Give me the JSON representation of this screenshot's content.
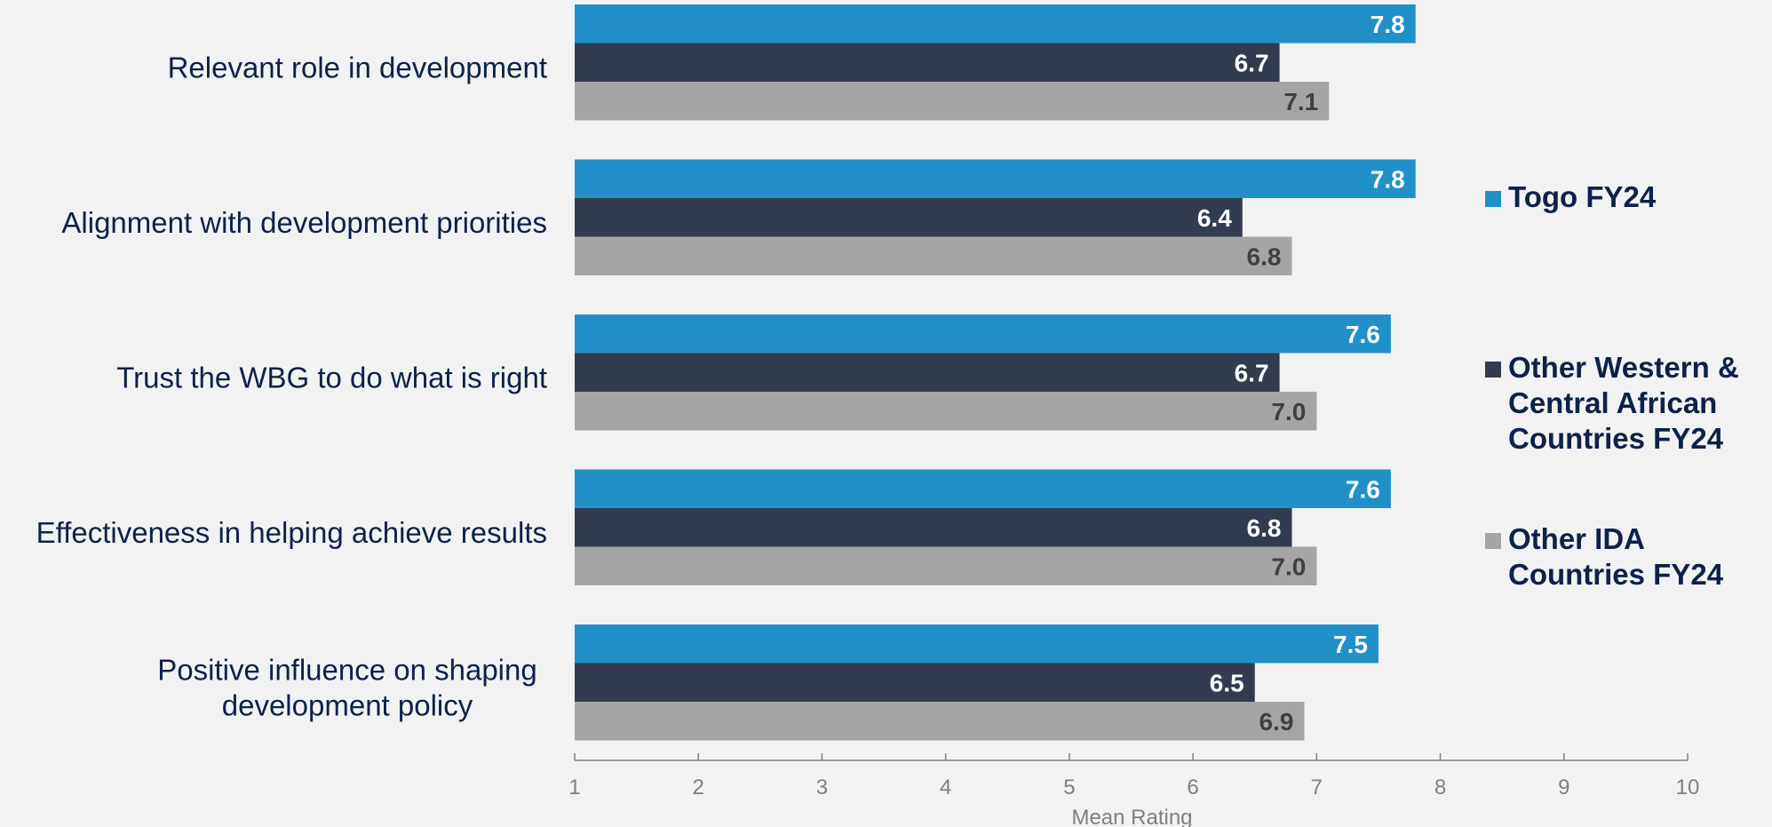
{
  "chart_data": {
    "type": "bar",
    "orientation": "horizontal",
    "categories": [
      [
        "Relevant role in development"
      ],
      [
        "Alignment with development priorities"
      ],
      [
        "Trust the WBG to do what is right"
      ],
      [
        "Effectiveness in helping achieve results"
      ],
      [
        "Positive influence on shaping",
        "development policy"
      ]
    ],
    "series": [
      {
        "name": [
          "Togo FY24"
        ],
        "color": "#2190c8",
        "label_color": "#ffffff",
        "values": [
          7.8,
          7.8,
          7.6,
          7.6,
          7.5
        ]
      },
      {
        "name": [
          "Other Western &",
          "Central African",
          "Countries FY24"
        ],
        "color": "#323c4e",
        "label_color": "#ffffff",
        "values": [
          6.7,
          6.4,
          6.7,
          6.8,
          6.5
        ]
      },
      {
        "name": [
          "Other IDA",
          "Countries FY24"
        ],
        "color": "#a5a5a5",
        "label_color": "#404040",
        "values": [
          7.1,
          6.8,
          7.0,
          7.0,
          6.9
        ]
      }
    ],
    "xlabel": "Mean Rating",
    "xlim": [
      1,
      10
    ],
    "xticks": [
      1,
      2,
      3,
      4,
      5,
      6,
      7,
      8,
      9,
      10
    ],
    "value_format_decimals": 1,
    "grid": false,
    "legend_position": "right"
  }
}
